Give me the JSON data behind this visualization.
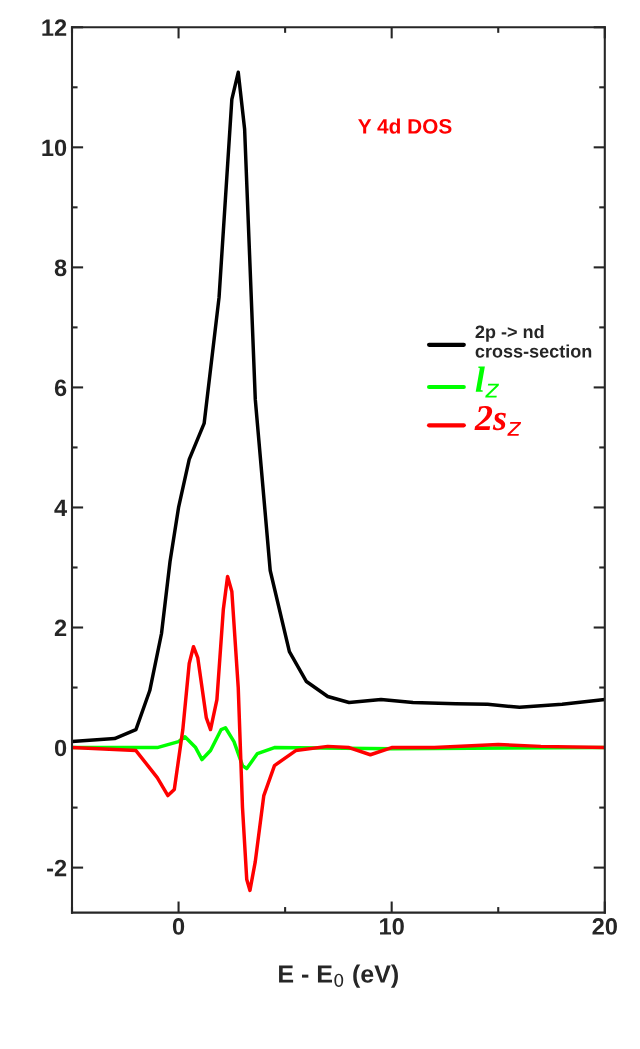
{
  "chart_data": {
    "type": "line",
    "xlabel": "E - E$_{0}$ (eV)",
    "xlim": [
      -5,
      20
    ],
    "xticks": [
      0,
      10,
      20
    ],
    "ylim": [
      -2.75,
      12
    ],
    "yticks": [
      -2,
      0,
      2,
      4,
      6,
      8,
      10,
      12
    ],
    "grid": false,
    "legend": "right",
    "marker": "none",
    "line_style": "solid",
    "annotations": [
      "Y 4d DOS"
    ],
    "series": [
      {
        "name": "2p -> nd\ncross-section",
        "color": "#000000",
        "x": [
          -5,
          -3,
          -2,
          -1.35,
          -0.8,
          -0.4,
          0,
          0.5,
          1.2,
          1.9,
          2.5,
          2.8,
          3.1,
          3.6,
          4.3,
          5.2,
          6,
          7,
          8,
          9.5,
          11,
          13,
          14.5,
          16,
          18,
          20
        ],
        "values": [
          0.1,
          0.15,
          0.3,
          0.95,
          1.9,
          3.1,
          4.0,
          4.8,
          5.4,
          7.5,
          10.8,
          11.25,
          10.3,
          5.8,
          2.95,
          1.6,
          1.1,
          0.85,
          0.75,
          0.8,
          0.75,
          0.73,
          0.72,
          0.67,
          0.72,
          0.8
        ]
      },
      {
        "name": "l$_{z}$",
        "color": "#00ff00",
        "x": [
          -5,
          -1,
          0,
          0.3,
          0.8,
          1.1,
          1.5,
          2.0,
          2.2,
          2.6,
          3.0,
          3.2,
          3.7,
          4.5,
          10,
          20
        ],
        "values": [
          0,
          0,
          0.1,
          0.18,
          0.0,
          -0.2,
          -0.05,
          0.3,
          0.33,
          0.1,
          -0.3,
          -0.35,
          -0.1,
          0,
          -0.02,
          0
        ]
      },
      {
        "name": "2s$_{z}$",
        "color": "#ff0000",
        "x": [
          -5,
          -2,
          -1,
          -0.5,
          -0.2,
          0.2,
          0.5,
          0.7,
          0.9,
          1.3,
          1.5,
          1.8,
          2.1,
          2.3,
          2.5,
          2.8,
          3.0,
          3.2,
          3.35,
          3.6,
          4,
          4.5,
          5.5,
          7,
          8,
          9,
          10,
          12,
          15,
          17,
          20
        ],
        "values": [
          0,
          -0.05,
          -0.5,
          -0.8,
          -0.7,
          0.3,
          1.4,
          1.68,
          1.5,
          0.5,
          0.3,
          0.8,
          2.3,
          2.85,
          2.6,
          1.0,
          -1.0,
          -2.2,
          -2.38,
          -1.9,
          -0.8,
          -0.3,
          -0.05,
          0.02,
          0,
          -0.12,
          0,
          0,
          0.05,
          0.02,
          0
        ]
      }
    ]
  }
}
